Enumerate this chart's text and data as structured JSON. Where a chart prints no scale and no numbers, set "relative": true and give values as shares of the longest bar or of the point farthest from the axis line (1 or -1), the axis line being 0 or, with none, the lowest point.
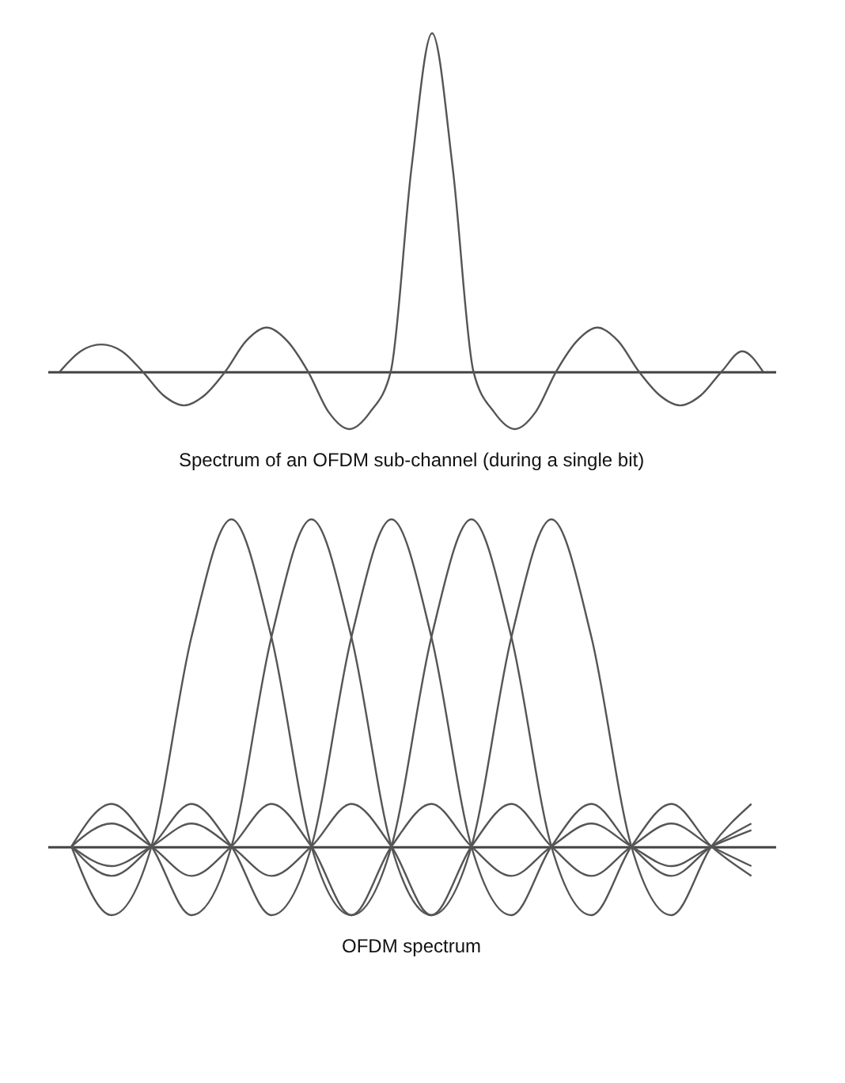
{
  "chart_data": [
    {
      "type": "line",
      "relative": true,
      "title": "Spectrum of an OFDM sub-channel (during a single bit)",
      "categories": [
        null,
        null,
        null,
        null,
        null,
        null,
        null,
        null,
        null,
        null,
        null,
        null,
        null,
        null,
        null,
        null,
        null,
        null,
        null,
        null,
        null,
        null,
        null,
        null,
        null,
        null,
        null,
        null,
        null,
        null,
        null,
        null,
        null,
        null,
        null
      ],
      "series": [
        {
          "color": "#555555",
          "values": [
            0,
            0.06,
            0.08,
            0.06,
            0,
            -0.07,
            -0.1,
            -0.07,
            0,
            0.09,
            0.13,
            0.09,
            0,
            -0.12,
            -0.17,
            -0.12,
            0,
            0.6,
            1,
            0.6,
            0,
            -0.12,
            -0.17,
            -0.12,
            0,
            0.09,
            0.13,
            0.09,
            0,
            -0.07,
            -0.1,
            -0.07,
            0,
            0.06,
            0
          ]
        }
      ]
    },
    {
      "type": "line",
      "relative": true,
      "title": "OFDM spectrum",
      "categories": [
        null,
        null,
        null,
        null,
        null,
        null,
        null,
        null,
        null,
        null,
        null,
        null,
        null,
        null,
        null,
        null,
        null,
        null
      ],
      "series": [
        {
          "color": "#555555",
          "values": [
            0,
            -0.21,
            0,
            0.64,
            1,
            0.64,
            0,
            -0.21,
            0,
            0.13,
            0,
            -0.09,
            0,
            0.07,
            0,
            -0.06,
            0,
            0.05
          ]
        },
        {
          "color": "#555555",
          "values": [
            0,
            0.13,
            0,
            -0.21,
            0,
            0.64,
            1,
            0.64,
            0,
            -0.21,
            0,
            0.13,
            0,
            -0.09,
            0,
            0.07,
            0,
            -0.06
          ]
        },
        {
          "color": "#555555",
          "values": [
            0,
            -0.09,
            0,
            0.13,
            0,
            -0.21,
            0,
            0.64,
            1,
            0.64,
            0,
            -0.21,
            0,
            0.13,
            0,
            -0.09,
            0,
            0.07
          ]
        },
        {
          "color": "#555555",
          "values": [
            0,
            0.07,
            0,
            -0.09,
            0,
            0.13,
            0,
            -0.21,
            0,
            0.64,
            1,
            0.64,
            0,
            -0.21,
            0,
            0.13,
            0,
            -0.09
          ]
        },
        {
          "color": "#555555",
          "values": [
            0,
            -0.06,
            0,
            0.07,
            0,
            -0.09,
            0,
            0.13,
            0,
            -0.21,
            0,
            0.64,
            1,
            0.64,
            0,
            -0.21,
            0,
            0.13
          ]
        }
      ]
    }
  ]
}
